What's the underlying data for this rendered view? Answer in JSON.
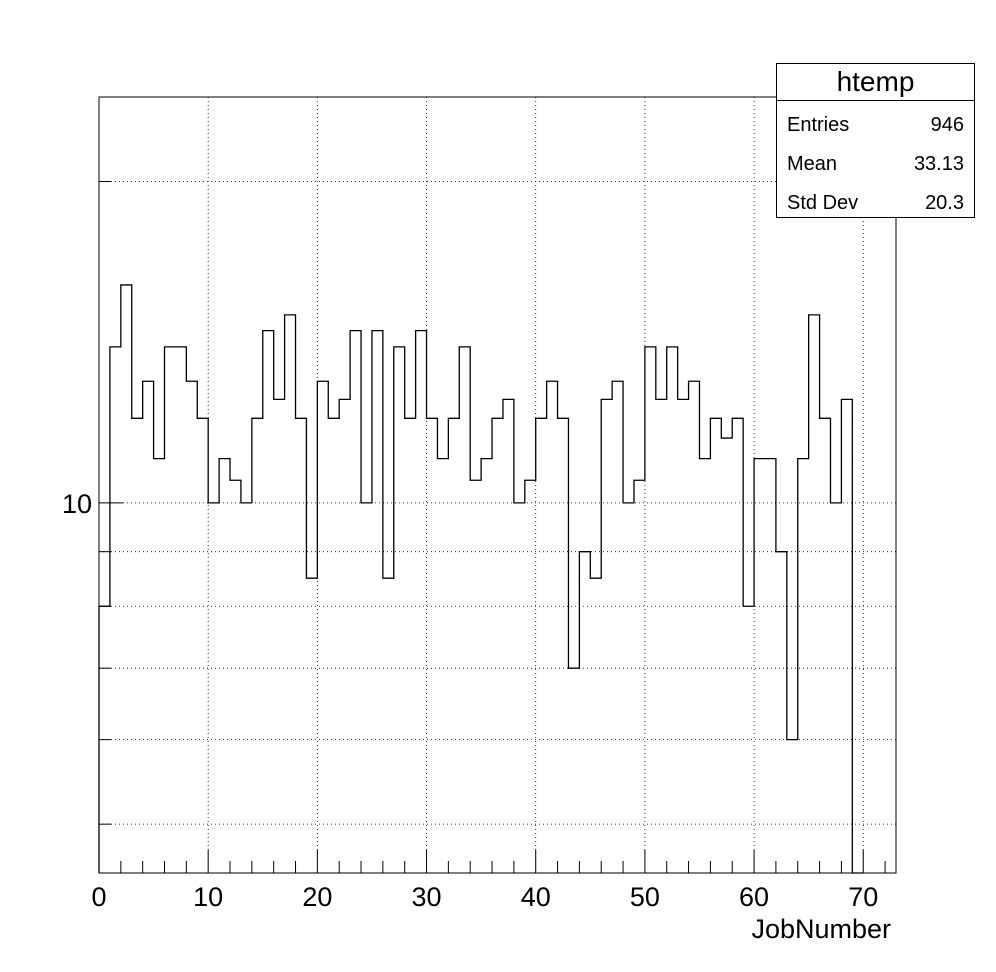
{
  "chart_data": {
    "type": "bar",
    "style": "step-histogram",
    "title": "",
    "xlabel": "JobNumber",
    "ylabel": "",
    "xlim": [
      0,
      73
    ],
    "ylim": [
      4.5,
      24
    ],
    "log_y": true,
    "grid": true,
    "x_ticks": [
      "0",
      "10",
      "20",
      "30",
      "40",
      "50",
      "60",
      "70"
    ],
    "y_ticks": [
      "10"
    ],
    "bin_width": 1,
    "bin_low_edges": [
      0,
      1,
      2,
      3,
      4,
      5,
      6,
      7,
      8,
      9,
      10,
      11,
      12,
      13,
      14,
      15,
      16,
      17,
      18,
      19,
      20,
      21,
      22,
      23,
      24,
      25,
      26,
      27,
      28,
      29,
      30,
      31,
      32,
      33,
      34,
      35,
      36,
      37,
      38,
      39,
      40,
      41,
      42,
      43,
      44,
      45,
      46,
      47,
      48,
      49,
      50,
      51,
      52,
      53,
      54,
      55,
      56,
      57,
      58,
      59,
      60,
      61,
      62,
      63,
      64,
      65,
      66,
      67,
      68,
      69
    ],
    "values": [
      8,
      14,
      16,
      12,
      13,
      11,
      14,
      14,
      13,
      12,
      10,
      11,
      10.5,
      10,
      12,
      14.5,
      12.5,
      15,
      12,
      8.5,
      13,
      12,
      12.5,
      14.5,
      10,
      14.5,
      8.5,
      14,
      12,
      14.5,
      12,
      11,
      12,
      14,
      10.5,
      11,
      12,
      12.5,
      10,
      10.5,
      12,
      13,
      12,
      7,
      9,
      8.5,
      12.5,
      13,
      10,
      10.5,
      14,
      12.5,
      14,
      12.5,
      13,
      11,
      12,
      11.5,
      12,
      8,
      11,
      11,
      9,
      6,
      11,
      15,
      12,
      10,
      12.5,
      0
    ]
  },
  "stats_box": {
    "title": "htemp",
    "rows": [
      {
        "label": "Entries",
        "value": "946"
      },
      {
        "label": "Mean",
        "value": "33.13"
      },
      {
        "label": "Std Dev",
        "value": "20.3"
      }
    ]
  }
}
